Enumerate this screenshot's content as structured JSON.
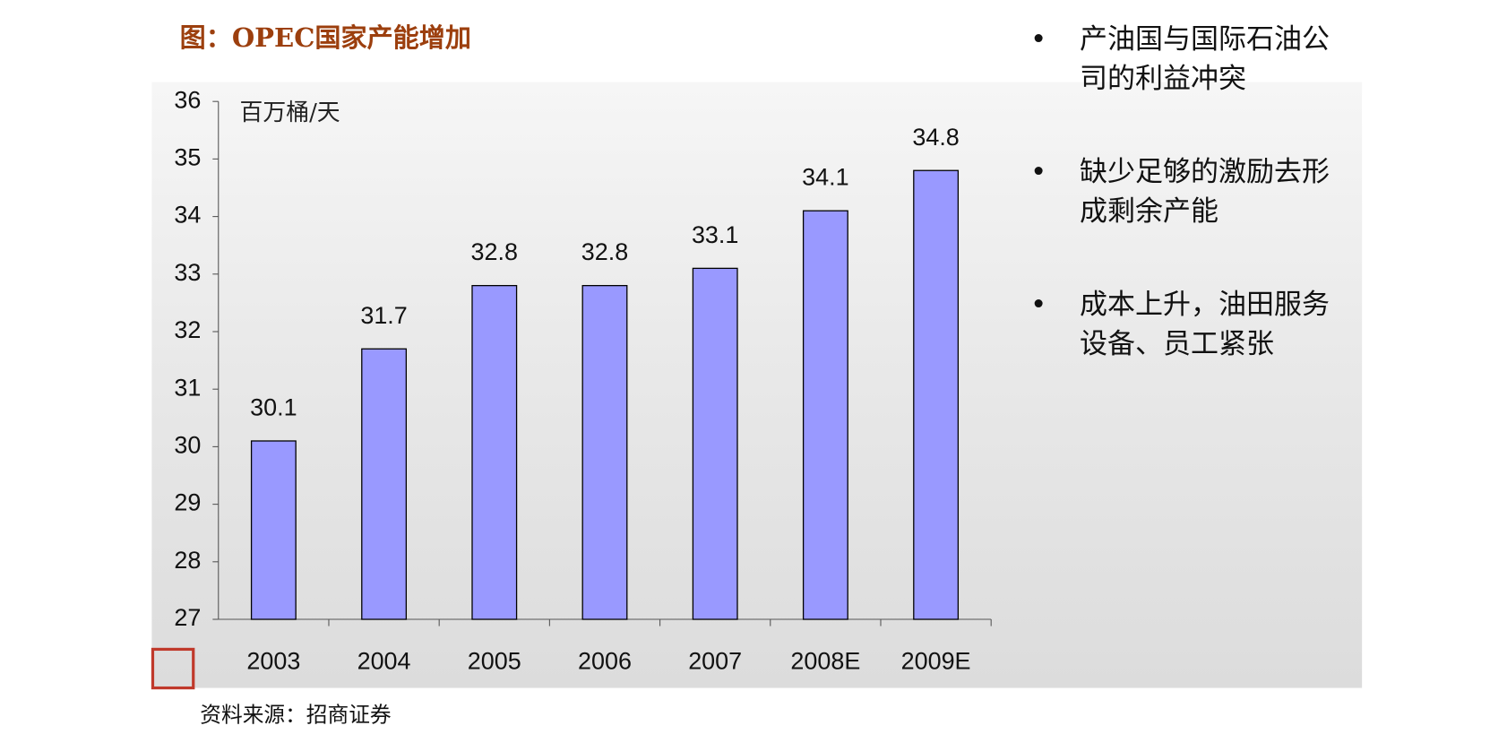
{
  "chart_data": {
    "type": "bar",
    "title": "图：OPEC国家产能增加",
    "y_label": "百万桶/天",
    "source": "资料来源：招商证券",
    "categories": [
      "2003",
      "2004",
      "2005",
      "2006",
      "2007",
      "2008E",
      "2009E"
    ],
    "values": [
      30.1,
      31.7,
      32.8,
      32.8,
      33.1,
      34.1,
      34.8
    ],
    "color": "#9999ff",
    "ylim": [
      27,
      36
    ],
    "yticks": [
      27,
      28,
      29,
      30,
      31,
      32,
      33,
      34,
      35,
      36
    ],
    "grid": false
  },
  "bullets": [
    "产油国与国际石油公司的利益冲突",
    "缺少足够的激励去形成剩余产能",
    "成本上升，油田服务设备、员工紧张"
  ]
}
